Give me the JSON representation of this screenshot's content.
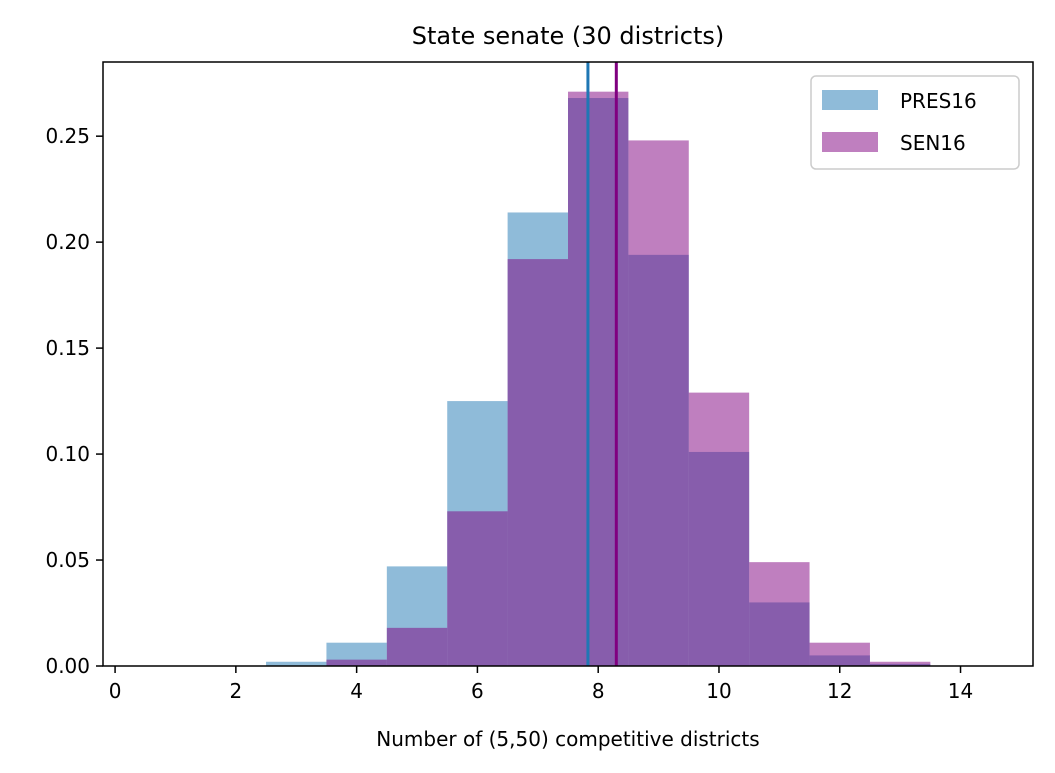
{
  "chart_data": {
    "type": "bar",
    "title": "State senate (30 districts)",
    "xlabel": "Number of (5,50) competitive districts",
    "ylabel": "",
    "xlim": [
      -0.2,
      15.2
    ],
    "ylim": [
      0,
      0.285
    ],
    "xticks": [
      0,
      2,
      4,
      6,
      8,
      10,
      12,
      14
    ],
    "xtick_labels": [
      "0",
      "2",
      "4",
      "6",
      "8",
      "10",
      "12",
      "14"
    ],
    "yticks": [
      0.0,
      0.05,
      0.1,
      0.15,
      0.2,
      0.25
    ],
    "ytick_labels": [
      "0.00",
      "0.05",
      "0.10",
      "0.15",
      "0.20",
      "0.25"
    ],
    "bin_edges": [
      2.5,
      3.5,
      4.5,
      5.5,
      6.5,
      7.5,
      8.5,
      9.5,
      10.5,
      11.5,
      12.5,
      13.5
    ],
    "series": [
      {
        "name": "PRES16",
        "color": "#1f77b4",
        "values": [
          0.002,
          0.011,
          0.047,
          0.125,
          0.214,
          0.268,
          0.194,
          0.101,
          0.03,
          0.005,
          0.001
        ],
        "mean": 7.83
      },
      {
        "name": "SEN16",
        "color": "#800080",
        "values": [
          0.0,
          0.003,
          0.018,
          0.073,
          0.192,
          0.271,
          0.248,
          0.129,
          0.049,
          0.011,
          0.002
        ],
        "mean": 8.3
      }
    ],
    "legend": {
      "placement": "top-right"
    },
    "grid": false
  }
}
